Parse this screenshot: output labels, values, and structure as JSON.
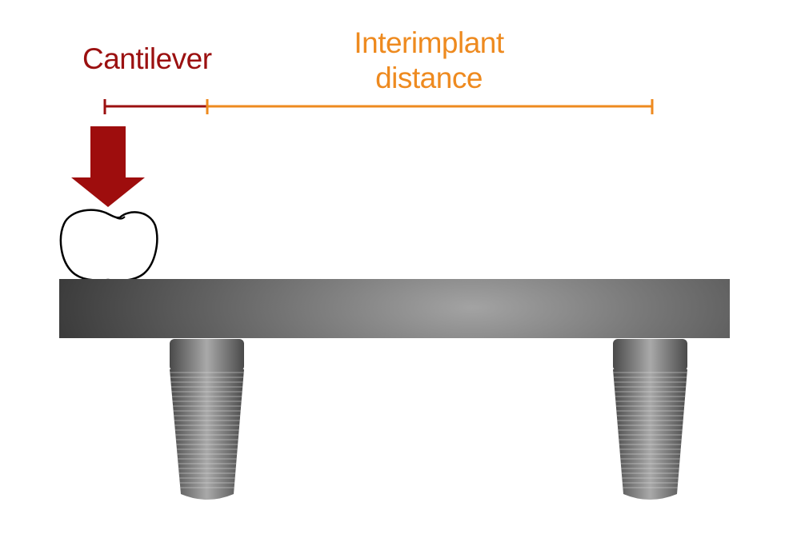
{
  "labels": {
    "cantilever": "Cantilever",
    "interimplant_line1": "Interimplant",
    "interimplant_line2": "distance"
  },
  "colors": {
    "cantilever": "#9b1010",
    "interimplant": "#ee8a1f",
    "arrow": "#9e0d0d",
    "bar_dark": "#3c3c3c",
    "bar_light": "#a3a3a3",
    "implant_dark": "#4a4a4a",
    "implant_light": "#a9a9a9",
    "crown_outline": "#000000"
  }
}
